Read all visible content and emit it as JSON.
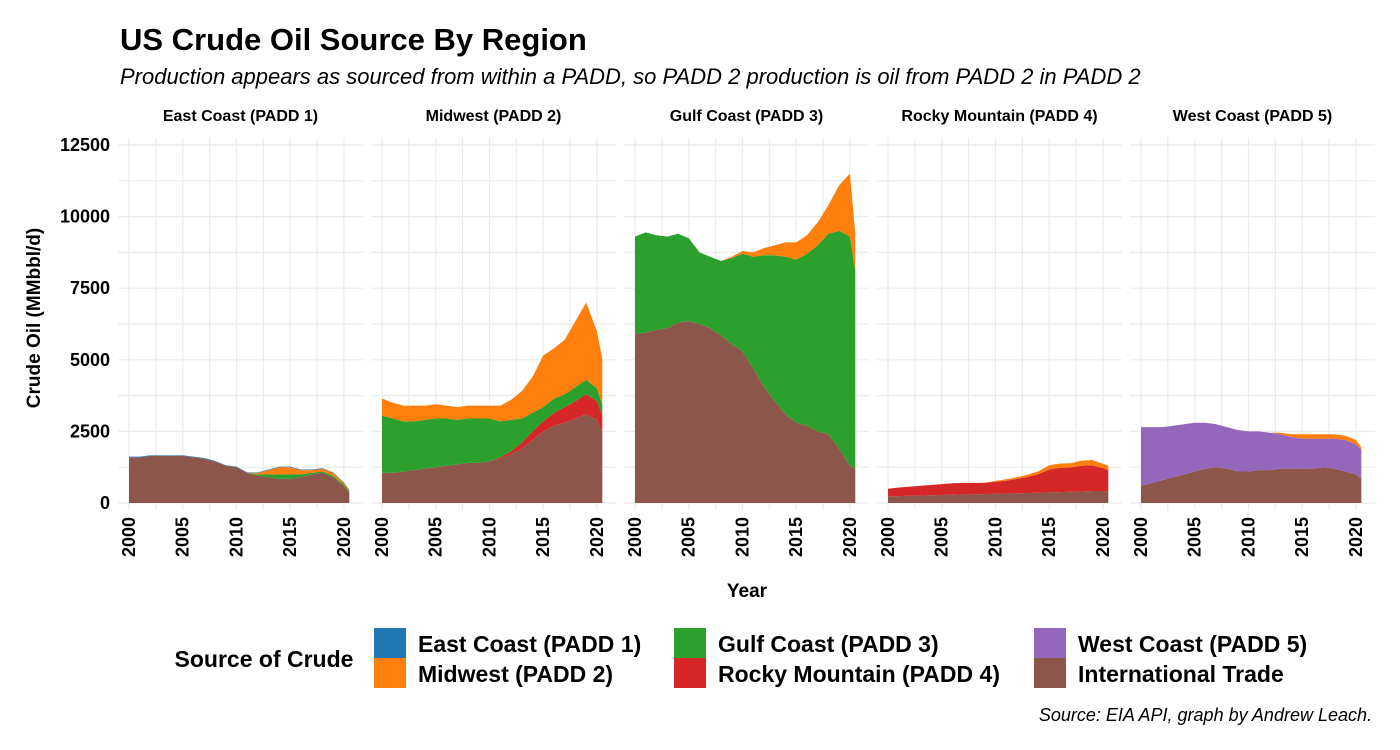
{
  "chart_data": {
    "type": "area",
    "title": "US Crude Oil Source By Region",
    "subtitle": "Production appears as sourced from within a PADD, so PADD 2 production is oil from PADD 2 in PADD 2",
    "xlabel": "Year",
    "ylabel": "Crude Oil (MMbbl/d)",
    "caption": "Source: EIA API, graph by Andrew Leach.",
    "xlim": [
      2000,
      2020.75
    ],
    "ylim": [
      0,
      12500
    ],
    "x_ticks": [
      "2000",
      "2005",
      "2010",
      "2015",
      "2020"
    ],
    "y_ticks": [
      "0",
      "2500",
      "5000",
      "7500",
      "10000",
      "12500"
    ],
    "x": [
      2000,
      2001,
      2002,
      2003,
      2004,
      2005,
      2006,
      2007,
      2008,
      2009,
      2010,
      2011,
      2012,
      2013,
      2014,
      2015,
      2016,
      2017,
      2018,
      2019,
      2020,
      2020.5
    ],
    "grid": true,
    "legend": {
      "title": "Source of Crude",
      "position": "bottom",
      "entries": [
        {
          "name": "East Coast (PADD 1)",
          "color": "#1f77b4"
        },
        {
          "name": "Midwest (PADD 2)",
          "color": "#ff7f0e"
        },
        {
          "name": "Gulf Coast (PADD 3)",
          "color": "#2ca02c"
        },
        {
          "name": "Rocky Mountain (PADD 4)",
          "color": "#d62728"
        },
        {
          "name": "West Coast (PADD 5)",
          "color": "#9467bd"
        },
        {
          "name": "International Trade",
          "color": "#8c564b"
        }
      ]
    },
    "panels": [
      {
        "name": "East Coast (PADD 1)",
        "series": [
          {
            "name": "International Trade",
            "values": [
              1600,
              1600,
              1650,
              1650,
              1650,
              1650,
              1600,
              1550,
              1450,
              1300,
              1250,
              1050,
              950,
              900,
              850,
              850,
              900,
              1000,
              1050,
              900,
              600,
              350
            ]
          },
          {
            "name": "Rocky Mountain (PADD 4)",
            "values": [
              0,
              0,
              0,
              0,
              0,
              0,
              0,
              0,
              0,
              0,
              0,
              0,
              0,
              0,
              0,
              0,
              0,
              0,
              0,
              0,
              0,
              0
            ]
          },
          {
            "name": "Gulf Coast (PADD 3)",
            "values": [
              0,
              0,
              0,
              0,
              0,
              0,
              0,
              0,
              0,
              0,
              0,
              0,
              50,
              100,
              150,
              150,
              100,
              50,
              50,
              50,
              50,
              50
            ]
          },
          {
            "name": "Midwest (PADD 2)",
            "values": [
              0,
              0,
              0,
              0,
              0,
              0,
              0,
              0,
              0,
              0,
              0,
              0,
              50,
              150,
              250,
              250,
              150,
              100,
              100,
              100,
              50,
              50
            ]
          },
          {
            "name": "East Coast (PADD 1)",
            "values": [
              20,
              20,
              20,
              20,
              20,
              20,
              20,
              20,
              20,
              20,
              20,
              20,
              20,
              20,
              20,
              20,
              20,
              20,
              20,
              20,
              20,
              20
            ]
          }
        ]
      },
      {
        "name": "Midwest (PADD 2)",
        "series": [
          {
            "name": "International Trade",
            "values": [
              1050,
              1050,
              1100,
              1150,
              1200,
              1250,
              1300,
              1350,
              1400,
              1400,
              1450,
              1550,
              1700,
              1900,
              2200,
              2500,
              2700,
              2800,
              2950,
              3100,
              2900,
              2450
            ]
          },
          {
            "name": "Rocky Mountain (PADD 4)",
            "values": [
              0,
              0,
              0,
              0,
              0,
              0,
              0,
              0,
              0,
              0,
              0,
              50,
              100,
              200,
              300,
              350,
              450,
              550,
              600,
              700,
              650,
              600
            ]
          },
          {
            "name": "Gulf Coast (PADD 3)",
            "values": [
              2000,
              1900,
              1750,
              1700,
              1700,
              1700,
              1650,
              1550,
              1550,
              1550,
              1500,
              1250,
              1100,
              850,
              650,
              500,
              500,
              450,
              500,
              500,
              450,
              400
            ]
          },
          {
            "name": "Midwest (PADD 2)",
            "values": [
              600,
              550,
              550,
              550,
              500,
              500,
              450,
              450,
              450,
              450,
              450,
              550,
              700,
              950,
              1250,
              1800,
              1750,
              1900,
              2300,
              2700,
              2000,
              1600
            ]
          },
          {
            "name": "East Coast (PADD 1)",
            "values": [
              0,
              0,
              0,
              0,
              0,
              0,
              0,
              0,
              0,
              0,
              0,
              0,
              0,
              0,
              0,
              0,
              0,
              0,
              0,
              0,
              0,
              0
            ]
          }
        ]
      },
      {
        "name": "Gulf Coast (PADD 3)",
        "series": [
          {
            "name": "International Trade",
            "values": [
              5900,
              5950,
              6050,
              6100,
              6300,
              6350,
              6250,
              6100,
              5850,
              5550,
              5300,
              4700,
              4050,
              3550,
              3100,
              2800,
              2700,
              2500,
              2400,
              1900,
              1300,
              1200
            ]
          },
          {
            "name": "Rocky Mountain (PADD 4)",
            "values": [
              0,
              0,
              0,
              0,
              0,
              0,
              0,
              0,
              0,
              0,
              0,
              0,
              0,
              0,
              0,
              0,
              0,
              0,
              0,
              0,
              0,
              0
            ]
          },
          {
            "name": "Gulf Coast (PADD 3)",
            "values": [
              3400,
              3500,
              3300,
              3200,
              3100,
              2900,
              2500,
              2500,
              2600,
              3000,
              3400,
              3900,
              4600,
              5100,
              5500,
              5700,
              6000,
              6500,
              7000,
              7600,
              8000,
              6900
            ]
          },
          {
            "name": "Midwest (PADD 2)",
            "values": [
              0,
              0,
              0,
              0,
              0,
              0,
              0,
              0,
              0,
              50,
              100,
              150,
              250,
              350,
              500,
              600,
              650,
              800,
              1000,
              1600,
              2200,
              1300
            ]
          },
          {
            "name": "East Coast (PADD 1)",
            "values": [
              0,
              0,
              0,
              0,
              0,
              0,
              0,
              0,
              0,
              0,
              0,
              0,
              0,
              0,
              0,
              0,
              0,
              0,
              0,
              0,
              0,
              0
            ]
          }
        ]
      },
      {
        "name": "Rocky Mountain (PADD 4)",
        "series": [
          {
            "name": "International Trade",
            "values": [
              230,
              240,
              250,
              260,
              270,
              280,
              290,
              300,
              300,
              310,
              320,
              330,
              340,
              350,
              360,
              370,
              380,
              390,
              400,
              420,
              420,
              400
            ]
          },
          {
            "name": "Rocky Mountain (PADD 4)",
            "values": [
              270,
              300,
              320,
              340,
              360,
              380,
              400,
              400,
              400,
              400,
              420,
              450,
              500,
              560,
              650,
              800,
              850,
              850,
              900,
              900,
              800,
              750
            ]
          },
          {
            "name": "Gulf Coast (PADD 3)",
            "values": [
              0,
              0,
              0,
              0,
              0,
              0,
              0,
              0,
              0,
              0,
              0,
              0,
              0,
              0,
              0,
              0,
              0,
              0,
              0,
              0,
              0,
              0
            ]
          },
          {
            "name": "Midwest (PADD 2)",
            "values": [
              0,
              0,
              0,
              0,
              0,
              0,
              0,
              0,
              0,
              0,
              30,
              50,
              60,
              80,
              100,
              150,
              150,
              150,
              180,
              180,
              150,
              150
            ]
          },
          {
            "name": "East Coast (PADD 1)",
            "values": [
              0,
              0,
              0,
              0,
              0,
              0,
              0,
              0,
              0,
              0,
              0,
              0,
              0,
              0,
              0,
              0,
              0,
              0,
              0,
              0,
              0,
              0
            ]
          }
        ]
      },
      {
        "name": "West Coast (PADD 5)",
        "series": [
          {
            "name": "International Trade",
            "values": [
              600,
              700,
              800,
              900,
              1000,
              1100,
              1200,
              1250,
              1200,
              1100,
              1100,
              1150,
              1150,
              1200,
              1200,
              1200,
              1200,
              1250,
              1200,
              1100,
              1000,
              850
            ]
          },
          {
            "name": "West Coast (PADD 5)",
            "values": [
              2050,
              1950,
              1850,
              1800,
              1750,
              1700,
              1600,
              1500,
              1450,
              1450,
              1400,
              1350,
              1300,
              1200,
              1100,
              1050,
              1050,
              1000,
              1050,
              1100,
              1050,
              1000
            ]
          },
          {
            "name": "Gulf Coast (PADD 3)",
            "values": [
              0,
              0,
              0,
              0,
              0,
              0,
              0,
              0,
              0,
              0,
              0,
              0,
              0,
              0,
              0,
              0,
              0,
              0,
              0,
              0,
              0,
              0
            ]
          },
          {
            "name": "Midwest (PADD 2)",
            "values": [
              0,
              0,
              0,
              0,
              0,
              0,
              0,
              0,
              0,
              0,
              0,
              0,
              0,
              50,
              100,
              150,
              150,
              150,
              150,
              150,
              150,
              100
            ]
          },
          {
            "name": "East Coast (PADD 1)",
            "values": [
              0,
              0,
              0,
              0,
              0,
              0,
              0,
              0,
              0,
              0,
              0,
              0,
              0,
              0,
              0,
              0,
              0,
              0,
              0,
              0,
              0,
              0
            ]
          }
        ]
      }
    ]
  }
}
